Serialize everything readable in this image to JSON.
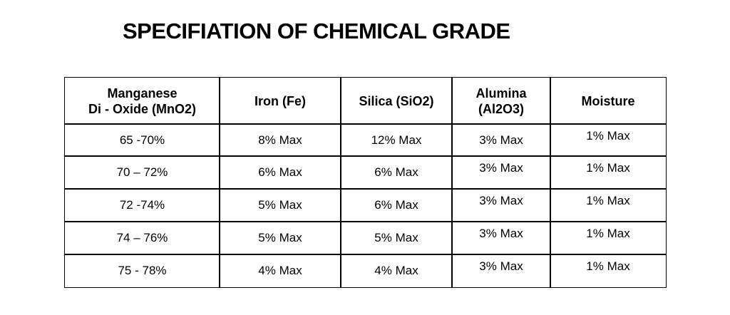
{
  "title": "SPECIFIATION OF CHEMICAL GRADE",
  "table": {
    "headers": [
      [
        "Manganese",
        "Di - Oxide (MnO2)"
      ],
      [
        "Iron (Fe)"
      ],
      [
        "Silica (SiO2)"
      ],
      [
        "Alumina",
        "(Al2O3)"
      ],
      [
        "Moisture"
      ]
    ],
    "rows": [
      [
        "65 -70%",
        "8% Max",
        "12% Max",
        "3% Max",
        "1% Max"
      ],
      [
        "70 – 72%",
        "6% Max",
        "6% Max",
        "3% Max",
        "1% Max"
      ],
      [
        "72 -74%",
        "5% Max",
        "6% Max",
        "3% Max",
        "1% Max"
      ],
      [
        "74 – 76%",
        "5% Max",
        "5% Max",
        "3% Max",
        "1% Max"
      ],
      [
        "75 - 78%",
        "4% Max",
        "4% Max",
        "3% Max",
        "1% Max"
      ]
    ]
  }
}
